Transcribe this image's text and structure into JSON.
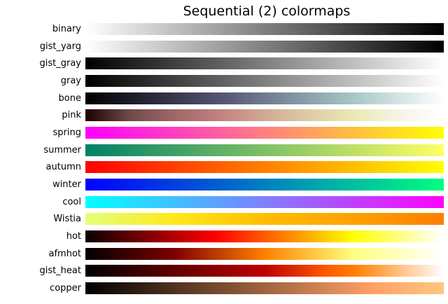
{
  "chart_data": {
    "type": "heatmap",
    "title": "Sequential (2) colormaps",
    "xlabel": "",
    "ylabel": "",
    "layout": {
      "orientation": "horizontal-gradient-strips",
      "grid": false,
      "legend": "none",
      "background": "#ffffff",
      "label_side": "left"
    },
    "categories": [
      "binary",
      "gist_yarg",
      "gist_gray",
      "gray",
      "bone",
      "pink",
      "spring",
      "summer",
      "autumn",
      "winter",
      "cool",
      "Wistia",
      "hot",
      "afmhot",
      "gist_heat",
      "copper"
    ],
    "series": [
      {
        "name": "binary",
        "gradient_stops": [
          [
            "#ffffff",
            0
          ],
          [
            "#000000",
            100
          ]
        ]
      },
      {
        "name": "gist_yarg",
        "gradient_stops": [
          [
            "#ffffff",
            0
          ],
          [
            "#000000",
            100
          ]
        ]
      },
      {
        "name": "gist_gray",
        "gradient_stops": [
          [
            "#000000",
            0
          ],
          [
            "#ffffff",
            100
          ]
        ]
      },
      {
        "name": "gray",
        "gradient_stops": [
          [
            "#000000",
            0
          ],
          [
            "#ffffff",
            100
          ]
        ]
      },
      {
        "name": "bone",
        "gradient_stops": [
          [
            "#000000",
            0
          ],
          [
            "#515171",
            36.5
          ],
          [
            "#a6c6c6",
            74.6
          ],
          [
            "#ffffff",
            100
          ]
        ]
      },
      {
        "name": "pink",
        "gradient_stops": [
          [
            "#1e0000",
            0
          ],
          [
            "#704a4a",
            12.5
          ],
          [
            "#9f6868",
            25
          ],
          [
            "#c38080",
            37.5
          ],
          [
            "#d0aa93",
            50
          ],
          [
            "#ddcca5",
            62.5
          ],
          [
            "#e9e9b4",
            75
          ],
          [
            "#f4f4e5",
            87.5
          ],
          [
            "#ffffff",
            100
          ]
        ]
      },
      {
        "name": "spring",
        "gradient_stops": [
          [
            "#ff00ff",
            0
          ],
          [
            "#ffff00",
            100
          ]
        ]
      },
      {
        "name": "summer",
        "gradient_stops": [
          [
            "#008066",
            0
          ],
          [
            "#ffff66",
            100
          ]
        ]
      },
      {
        "name": "autumn",
        "gradient_stops": [
          [
            "#ff0000",
            0
          ],
          [
            "#ffff00",
            100
          ]
        ]
      },
      {
        "name": "winter",
        "gradient_stops": [
          [
            "#0000ff",
            0
          ],
          [
            "#00ff80",
            100
          ]
        ]
      },
      {
        "name": "cool",
        "gradient_stops": [
          [
            "#00ffff",
            0
          ],
          [
            "#ff00ff",
            100
          ]
        ]
      },
      {
        "name": "Wistia",
        "gradient_stops": [
          [
            "#e4ff7a",
            0
          ],
          [
            "#ffe81a",
            25
          ],
          [
            "#ffbd00",
            50
          ],
          [
            "#ffa000",
            75
          ],
          [
            "#fc7f00",
            100
          ]
        ]
      },
      {
        "name": "hot",
        "gradient_stops": [
          [
            "#0a0000",
            0
          ],
          [
            "#ff0000",
            36.5
          ],
          [
            "#ffff00",
            74.6
          ],
          [
            "#ffffff",
            100
          ]
        ]
      },
      {
        "name": "afmhot",
        "gradient_stops": [
          [
            "#000000",
            0
          ],
          [
            "#800000",
            25
          ],
          [
            "#ff8000",
            50
          ],
          [
            "#ffff80",
            75
          ],
          [
            "#ffffff",
            100
          ]
        ]
      },
      {
        "name": "gist_heat",
        "gradient_stops": [
          [
            "#000000",
            0
          ],
          [
            "#800000",
            33.3
          ],
          [
            "#bf0000",
            50
          ],
          [
            "#ff5500",
            66.7
          ],
          [
            "#ff8000",
            75
          ],
          [
            "#ffbf80",
            87.5
          ],
          [
            "#ffffff",
            100
          ]
        ]
      },
      {
        "name": "copper",
        "gradient_stops": [
          [
            "#000000",
            0
          ],
          [
            "#9f643f",
            50
          ],
          [
            "#ffa066",
            80.2
          ],
          [
            "#ffc77f",
            100
          ]
        ]
      }
    ]
  }
}
